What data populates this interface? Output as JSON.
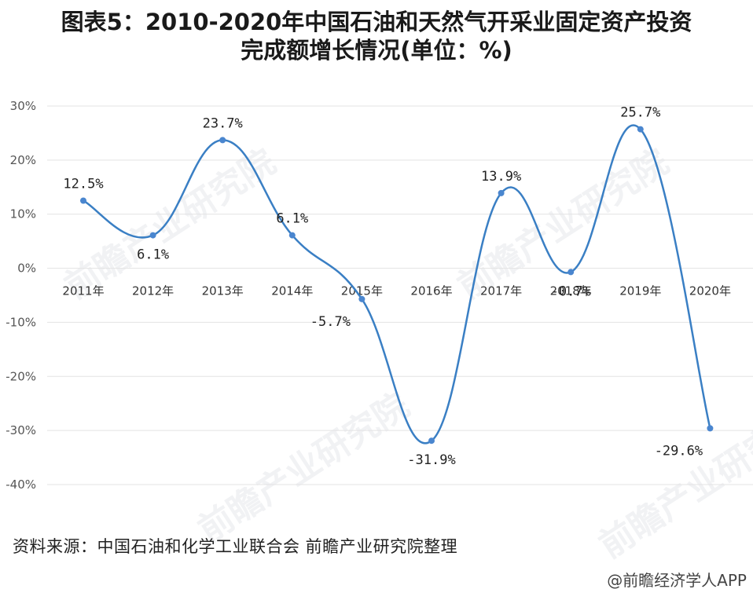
{
  "title_line1": "图表5：2010-2020年中国石油和天然气开采业固定资产投资",
  "title_line2": "完成额增长情况(单位：%)",
  "source": "资料来源：中国石油和化学工业联合会 前瞻产业研究院整理",
  "footer": "@前瞻经济学人APP",
  "watermark": "前瞻产业研究院",
  "colors": {
    "line": "#3a7fc4",
    "point": "#4a86cf",
    "grid": "#e3e3e3"
  },
  "chart_data": {
    "type": "line",
    "title": "图表5：2010-2020年中国石油和天然气开采业固定资产投资完成额增长情况(单位：%)",
    "categories": [
      "2011年",
      "2012年",
      "2013年",
      "2014年",
      "2015年",
      "2016年",
      "2017年",
      "2018年",
      "2019年",
      "2020年"
    ],
    "values": [
      12.5,
      6.1,
      23.7,
      6.1,
      -5.7,
      -31.9,
      13.9,
      -0.7,
      25.7,
      -29.6
    ],
    "value_labels": [
      "12.5%",
      "6.1%",
      "23.7%",
      "6.1%",
      "-5.7%",
      "-31.9%",
      "13.9%",
      "-0.7%",
      "25.7%",
      "-29.6%"
    ],
    "yticks": [
      "30%",
      "20%",
      "10%",
      "0%",
      "-10%",
      "-20%",
      "-30%",
      "-40%"
    ],
    "ytick_values": [
      30,
      20,
      10,
      0,
      -10,
      -20,
      -30,
      -40
    ],
    "ylim": [
      -40,
      30
    ],
    "grid": true,
    "smooth": true,
    "xlabel": "",
    "ylabel": ""
  }
}
